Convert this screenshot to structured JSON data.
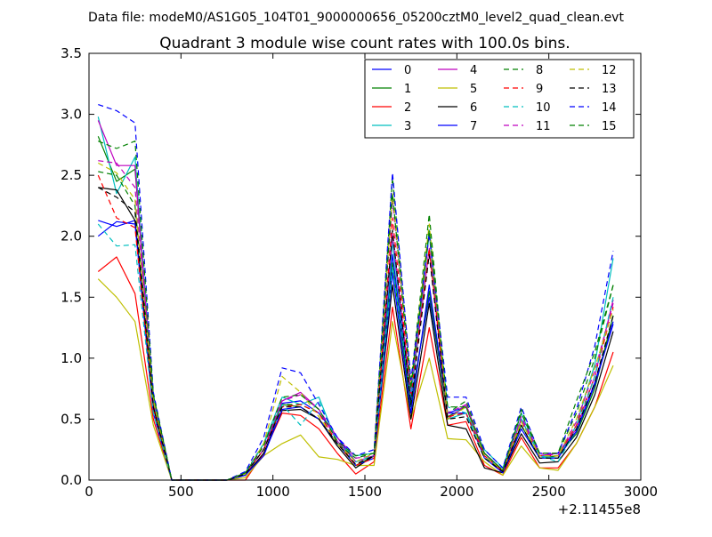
{
  "header": {
    "data_file": "Data file: modeM0/AS1G05_104T01_9000000656_05200cztM0_level2_quad_clean.evt"
  },
  "chart_data": {
    "type": "line",
    "title": "Quadrant 3 module wise count rates with 100.0s bins.",
    "xlabel": "",
    "ylabel": "",
    "x_offset_label": "+2.11455e8",
    "xlim": [
      0,
      3000
    ],
    "ylim": [
      0,
      3.5
    ],
    "x_ticks": [
      0,
      500,
      1000,
      1500,
      2000,
      2500,
      3000
    ],
    "x_tick_labels": [
      "0",
      "500",
      "1000",
      "1500",
      "2000",
      "2500",
      "3000"
    ],
    "y_ticks": [
      0,
      0.5,
      1,
      1.5,
      2,
      2.5,
      3,
      3.5
    ],
    "y_tick_labels": [
      "0.0",
      "0.5",
      "1.0",
      "1.5",
      "2.0",
      "2.5",
      "3.0",
      "3.5"
    ],
    "grid": false,
    "legend_position": "top-right",
    "legend_columns": 4,
    "x": [
      50,
      150,
      250,
      350,
      450,
      550,
      650,
      750,
      850,
      950,
      1050,
      1150,
      1250,
      1350,
      1450,
      1550,
      1650,
      1750,
      1850,
      1950,
      2050,
      2150,
      2250,
      2350,
      2450,
      2550,
      2650,
      2750,
      2850
    ],
    "series": [
      {
        "name": "0",
        "color": "#0000ff",
        "style": "solid",
        "values": [
          2.13,
          2.08,
          2.13,
          0.6,
          0.0,
          0.0,
          0.0,
          0.0,
          0.05,
          0.2,
          0.63,
          0.65,
          0.55,
          0.35,
          0.15,
          0.2,
          1.85,
          0.65,
          1.5,
          0.55,
          0.6,
          0.22,
          0.08,
          0.5,
          0.2,
          0.22,
          0.4,
          0.8,
          1.3
        ]
      },
      {
        "name": "1",
        "color": "#008000",
        "style": "solid",
        "values": [
          2.82,
          2.45,
          2.55,
          0.65,
          0.0,
          0.0,
          0.0,
          0.0,
          0.05,
          0.25,
          0.62,
          0.6,
          0.5,
          0.3,
          0.12,
          0.2,
          1.78,
          0.6,
          1.55,
          0.52,
          0.6,
          0.2,
          0.07,
          0.45,
          0.18,
          0.2,
          0.38,
          0.75,
          1.35
        ]
      },
      {
        "name": "2",
        "color": "#ff0000",
        "style": "solid",
        "values": [
          1.71,
          1.83,
          1.53,
          0.5,
          0.0,
          0.0,
          0.0,
          0.0,
          0.0,
          0.22,
          0.55,
          0.53,
          0.42,
          0.22,
          0.05,
          0.15,
          1.42,
          0.42,
          1.25,
          0.45,
          0.48,
          0.12,
          0.04,
          0.35,
          0.1,
          0.1,
          0.3,
          0.6,
          1.05
        ]
      },
      {
        "name": "3",
        "color": "#00bfbf",
        "style": "solid",
        "values": [
          2.98,
          2.35,
          2.65,
          0.65,
          0.0,
          0.0,
          0.0,
          0.0,
          0.05,
          0.3,
          0.68,
          0.62,
          0.68,
          0.3,
          0.2,
          0.22,
          1.95,
          0.7,
          2.02,
          0.5,
          0.55,
          0.25,
          0.1,
          0.55,
          0.2,
          0.18,
          0.45,
          0.95,
          1.82
        ]
      },
      {
        "name": "4",
        "color": "#bf00bf",
        "style": "solid",
        "values": [
          2.95,
          2.58,
          2.58,
          0.62,
          0.0,
          0.0,
          0.0,
          0.0,
          0.05,
          0.25,
          0.65,
          0.72,
          0.58,
          0.32,
          0.15,
          0.2,
          2.02,
          0.68,
          1.9,
          0.5,
          0.62,
          0.2,
          0.08,
          0.5,
          0.2,
          0.22,
          0.42,
          0.85,
          1.48
        ]
      },
      {
        "name": "5",
        "color": "#bfbf00",
        "style": "solid",
        "values": [
          1.65,
          1.5,
          1.3,
          0.45,
          0.0,
          0.0,
          0.0,
          0.0,
          0.02,
          0.2,
          0.3,
          0.37,
          0.19,
          0.17,
          0.12,
          0.12,
          1.3,
          0.5,
          1.0,
          0.34,
          0.33,
          0.15,
          0.04,
          0.28,
          0.1,
          0.08,
          0.3,
          0.6,
          0.94
        ]
      },
      {
        "name": "6",
        "color": "#000000",
        "style": "solid",
        "values": [
          2.4,
          2.38,
          2.13,
          0.6,
          0.0,
          0.0,
          0.0,
          0.0,
          0.04,
          0.22,
          0.57,
          0.58,
          0.5,
          0.28,
          0.1,
          0.2,
          1.6,
          0.5,
          1.45,
          0.45,
          0.42,
          0.1,
          0.06,
          0.38,
          0.14,
          0.15,
          0.35,
          0.7,
          1.22
        ]
      },
      {
        "name": "7",
        "color": "#0000ff",
        "style": "solid",
        "values": [
          2.0,
          2.12,
          2.1,
          0.55,
          0.0,
          0.0,
          0.0,
          0.0,
          0.04,
          0.2,
          0.58,
          0.6,
          0.5,
          0.3,
          0.12,
          0.18,
          1.7,
          0.55,
          1.6,
          0.55,
          0.55,
          0.18,
          0.06,
          0.42,
          0.18,
          0.18,
          0.4,
          0.78,
          1.28
        ]
      },
      {
        "name": "8",
        "color": "#008000",
        "style": "dashed",
        "values": [
          2.53,
          2.5,
          2.25,
          0.7,
          0.0,
          0.0,
          0.0,
          0.0,
          0.06,
          0.3,
          0.62,
          0.62,
          0.55,
          0.3,
          0.18,
          0.22,
          2.48,
          0.8,
          2.18,
          0.55,
          0.65,
          0.22,
          0.08,
          0.55,
          0.22,
          0.22,
          0.55,
          1.0,
          1.6
        ]
      },
      {
        "name": "9",
        "color": "#ff0000",
        "style": "dashed",
        "values": [
          2.5,
          2.15,
          2.07,
          0.58,
          0.0,
          0.0,
          0.0,
          0.0,
          0.05,
          0.25,
          0.6,
          0.62,
          0.55,
          0.3,
          0.12,
          0.18,
          2.15,
          0.7,
          1.9,
          0.52,
          0.55,
          0.2,
          0.07,
          0.48,
          0.2,
          0.2,
          0.45,
          0.85,
          1.42
        ]
      },
      {
        "name": "10",
        "color": "#00bfbf",
        "style": "dashed",
        "values": [
          2.1,
          1.92,
          1.93,
          0.55,
          0.0,
          0.0,
          0.0,
          0.0,
          0.05,
          0.3,
          0.62,
          0.45,
          0.65,
          0.3,
          0.15,
          0.2,
          1.75,
          0.68,
          2.05,
          0.6,
          0.55,
          0.18,
          0.1,
          0.5,
          0.2,
          0.15,
          0.42,
          0.85,
          1.5
        ]
      },
      {
        "name": "11",
        "color": "#bf00bf",
        "style": "dashed",
        "values": [
          2.62,
          2.6,
          2.4,
          0.65,
          0.0,
          0.0,
          0.0,
          0.0,
          0.05,
          0.28,
          0.65,
          0.7,
          0.58,
          0.35,
          0.18,
          0.2,
          2.3,
          0.75,
          2.02,
          0.55,
          0.62,
          0.22,
          0.08,
          0.52,
          0.22,
          0.2,
          0.48,
          0.9,
          1.45
        ]
      },
      {
        "name": "12",
        "color": "#bfbf00",
        "style": "dashed",
        "values": [
          2.6,
          2.52,
          2.3,
          0.65,
          0.0,
          0.0,
          0.0,
          0.0,
          0.05,
          0.3,
          0.85,
          0.72,
          0.52,
          0.3,
          0.15,
          0.22,
          2.35,
          0.78,
          2.1,
          0.5,
          0.6,
          0.2,
          0.08,
          0.48,
          0.2,
          0.2,
          0.5,
          0.92,
          1.4
        ]
      },
      {
        "name": "13",
        "color": "#000000",
        "style": "dashed",
        "values": [
          2.4,
          2.32,
          2.2,
          0.6,
          0.0,
          0.0,
          0.0,
          0.0,
          0.05,
          0.25,
          0.6,
          0.6,
          0.5,
          0.3,
          0.13,
          0.2,
          2.05,
          0.62,
          1.85,
          0.5,
          0.52,
          0.18,
          0.07,
          0.45,
          0.18,
          0.18,
          0.42,
          0.8,
          1.35
        ]
      },
      {
        "name": "14",
        "color": "#0000ff",
        "style": "dashed",
        "values": [
          3.08,
          3.03,
          2.93,
          0.72,
          0.0,
          0.0,
          0.0,
          0.0,
          0.07,
          0.35,
          0.92,
          0.88,
          0.62,
          0.35,
          0.2,
          0.25,
          2.52,
          0.82,
          2.02,
          0.68,
          0.68,
          0.25,
          0.1,
          0.6,
          0.22,
          0.22,
          0.58,
          1.1,
          1.88
        ]
      },
      {
        "name": "15",
        "color": "#008000",
        "style": "dashed",
        "values": [
          2.78,
          2.72,
          2.78,
          0.7,
          0.0,
          0.0,
          0.0,
          0.0,
          0.06,
          0.28,
          0.68,
          0.7,
          0.58,
          0.32,
          0.2,
          0.22,
          2.35,
          0.75,
          2.05,
          0.6,
          0.6,
          0.22,
          0.08,
          0.58,
          0.22,
          0.22,
          0.65,
          1.05,
          1.6
        ]
      }
    ]
  }
}
